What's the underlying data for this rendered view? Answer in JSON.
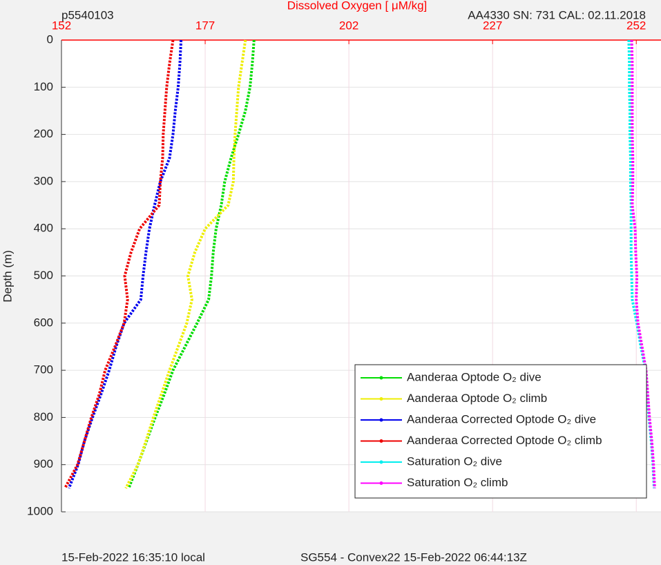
{
  "chart_data": {
    "type": "profile",
    "title": "Dissolved Oxygen [ μM/kg]",
    "subtitle_left": "p5540103",
    "subtitle_right": "AA4330   SN: 731   CAL: 02.11.2018",
    "y_label": "Depth (m)",
    "footer_left": "15-Feb-2022 16:35:10 local",
    "footer_right": "SG554 - Convex22 15-Feb-2022 06:44:13Z",
    "xlim": [
      152,
      256.3
    ],
    "xticks": [
      152,
      177,
      202,
      227,
      252
    ],
    "ylim": [
      1000,
      0
    ],
    "yticks": [
      0,
      100,
      200,
      300,
      400,
      500,
      600,
      700,
      800,
      900,
      1000
    ],
    "grid": true,
    "depth": [
      0,
      50,
      100,
      150,
      200,
      250,
      300,
      350,
      400,
      450,
      500,
      550,
      600,
      650,
      700,
      750,
      800,
      850,
      900,
      950
    ],
    "series": [
      {
        "name": "Aanderaa Optode O₂ dive",
        "color": "#00dd00",
        "values": [
          185.5,
          185.2,
          184.8,
          184.0,
          182.8,
          181.5,
          180.4,
          179.8,
          178.9,
          178.4,
          178.1,
          177.6,
          175.6,
          173.5,
          171.4,
          169.9,
          168.3,
          166.8,
          165.3,
          163.7
        ]
      },
      {
        "name": "Aanderaa Optode O₂ climb",
        "color": "#eeee00",
        "values": [
          184.0,
          183.4,
          182.8,
          182.5,
          182.2,
          182.0,
          181.9,
          181.0,
          177.0,
          175.2,
          174.0,
          174.7,
          173.8,
          172.3,
          170.8,
          169.4,
          168.0,
          166.7,
          165.3,
          163.2
        ]
      },
      {
        "name": "Aanderaa Corrected Optode O₂ dive",
        "color": "#0000ee",
        "values": [
          172.8,
          172.6,
          172.3,
          171.8,
          171.4,
          170.8,
          169.2,
          168.2,
          167.3,
          166.7,
          166.2,
          165.8,
          162.9,
          161.5,
          160.3,
          158.9,
          157.4,
          156.0,
          154.9,
          153.3
        ]
      },
      {
        "name": "Aanderaa Corrected Optode O₂ climb",
        "color": "#ee0000",
        "values": [
          171.4,
          170.8,
          170.3,
          170.0,
          169.7,
          169.6,
          169.2,
          169.0,
          165.6,
          164.1,
          163.0,
          163.5,
          162.9,
          161.3,
          159.6,
          158.6,
          157.2,
          156.0,
          154.8,
          152.6
        ]
      },
      {
        "name": "Saturation O₂ dive",
        "color": "#00eeee",
        "values": [
          250.7,
          250.8,
          250.8,
          250.9,
          250.9,
          251.0,
          251.0,
          251.1,
          251.1,
          251.1,
          251.2,
          251.3,
          252.1,
          252.8,
          253.6,
          253.9,
          254.2,
          254.6,
          254.9,
          255.1
        ]
      },
      {
        "name": "Saturation O₂ climb",
        "color": "#ff00ff",
        "values": [
          251.2,
          251.3,
          251.3,
          251.3,
          251.3,
          251.4,
          251.4,
          251.3,
          251.8,
          251.9,
          252.1,
          252.0,
          252.3,
          253.0,
          253.7,
          254.0,
          254.3,
          254.7,
          255.0,
          255.2
        ]
      }
    ]
  }
}
